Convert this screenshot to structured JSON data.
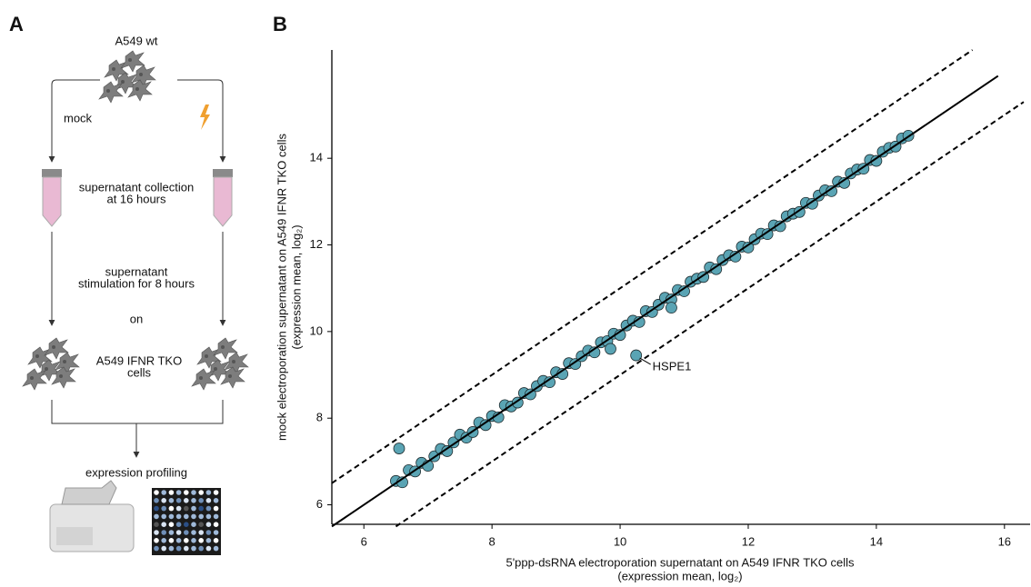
{
  "panel_a": {
    "letter": "A",
    "top_cells": "A549 wt",
    "mock": "mock",
    "collection": [
      "supernatant collection",
      "at 16 hours"
    ],
    "stimulation": [
      "supernatant",
      "stimulation for 8 hours"
    ],
    "on": "on",
    "target_cells": [
      "A549 IFNR TKO",
      "cells"
    ],
    "profiling": "expression profiling"
  },
  "chart_data": {
    "type": "scatter",
    "letter": "B",
    "xlabel": [
      "5'ppp-dsRNA electroporation supernatant on A549 IFNR TKO cells",
      "(expression mean, log₂)"
    ],
    "ylabel": [
      "mock electroporation supernatant on A549 IFNR TKO cells",
      "(expression mean, log₂)"
    ],
    "xlim": [
      5.5,
      16.4
    ],
    "ylim": [
      5.55,
      16.5
    ],
    "xticks": [
      6,
      8,
      10,
      12,
      14,
      16
    ],
    "yticks": [
      6,
      8,
      10,
      12,
      14
    ],
    "color": "#5aa4b4",
    "edgecolor": "#1e2b2e",
    "x": [
      6.5,
      6.6,
      6.7,
      6.8,
      6.9,
      7.0,
      7.1,
      7.2,
      7.3,
      7.4,
      7.5,
      7.6,
      7.7,
      7.8,
      7.9,
      8.0,
      8.1,
      8.2,
      8.3,
      8.4,
      8.5,
      8.6,
      8.7,
      8.8,
      8.9,
      9.0,
      9.1,
      9.2,
      9.3,
      9.4,
      9.5,
      9.6,
      9.7,
      9.8,
      9.9,
      10.0,
      10.1,
      10.2,
      10.3,
      10.4,
      10.5,
      10.6,
      10.7,
      10.8,
      10.9,
      11.0,
      11.1,
      11.2,
      11.3,
      11.4,
      11.5,
      11.6,
      11.7,
      11.8,
      11.9,
      12.0,
      12.1,
      12.2,
      12.3,
      12.4,
      12.5,
      12.6,
      12.7,
      12.8,
      12.9,
      13.0,
      13.1,
      13.2,
      13.3,
      13.4,
      13.5,
      13.6,
      13.7,
      13.8,
      13.9,
      14.0,
      14.1,
      14.2,
      14.3,
      14.4,
      14.5,
      6.55,
      10.8,
      9.85
    ],
    "y": [
      6.55,
      6.52,
      6.8,
      6.77,
      6.97,
      6.9,
      7.12,
      7.29,
      7.24,
      7.44,
      7.62,
      7.55,
      7.68,
      7.9,
      7.84,
      8.05,
      8.02,
      8.3,
      8.27,
      8.36,
      8.58,
      8.55,
      8.74,
      8.86,
      8.83,
      9.06,
      9.02,
      9.27,
      9.25,
      9.43,
      9.56,
      9.52,
      9.75,
      9.78,
      9.95,
      9.92,
      10.14,
      10.25,
      10.22,
      10.47,
      10.45,
      10.62,
      10.78,
      10.74,
      10.96,
      10.93,
      11.15,
      11.22,
      11.26,
      11.48,
      11.44,
      11.65,
      11.76,
      11.73,
      11.96,
      11.94,
      12.13,
      12.26,
      12.25,
      12.45,
      12.43,
      12.66,
      12.72,
      12.76,
      12.97,
      12.95,
      13.14,
      13.26,
      13.24,
      13.46,
      13.43,
      13.65,
      13.74,
      13.76,
      13.96,
      13.94,
      14.15,
      14.24,
      14.27,
      14.46,
      14.52,
      7.3,
      10.55,
      9.6
    ],
    "lines": [
      {
        "x": [
          5.5,
          15.9
        ],
        "y": [
          5.5,
          15.9
        ],
        "dashed": false
      },
      {
        "x": [
          5.5,
          15.5
        ],
        "y": [
          6.5,
          16.5
        ],
        "dashed": true
      },
      {
        "x": [
          6.5,
          16.3
        ],
        "y": [
          5.5,
          15.3
        ],
        "dashed": true
      }
    ],
    "annotation": {
      "text": "HSPE1",
      "x": 10.25,
      "y": 9.45
    }
  }
}
